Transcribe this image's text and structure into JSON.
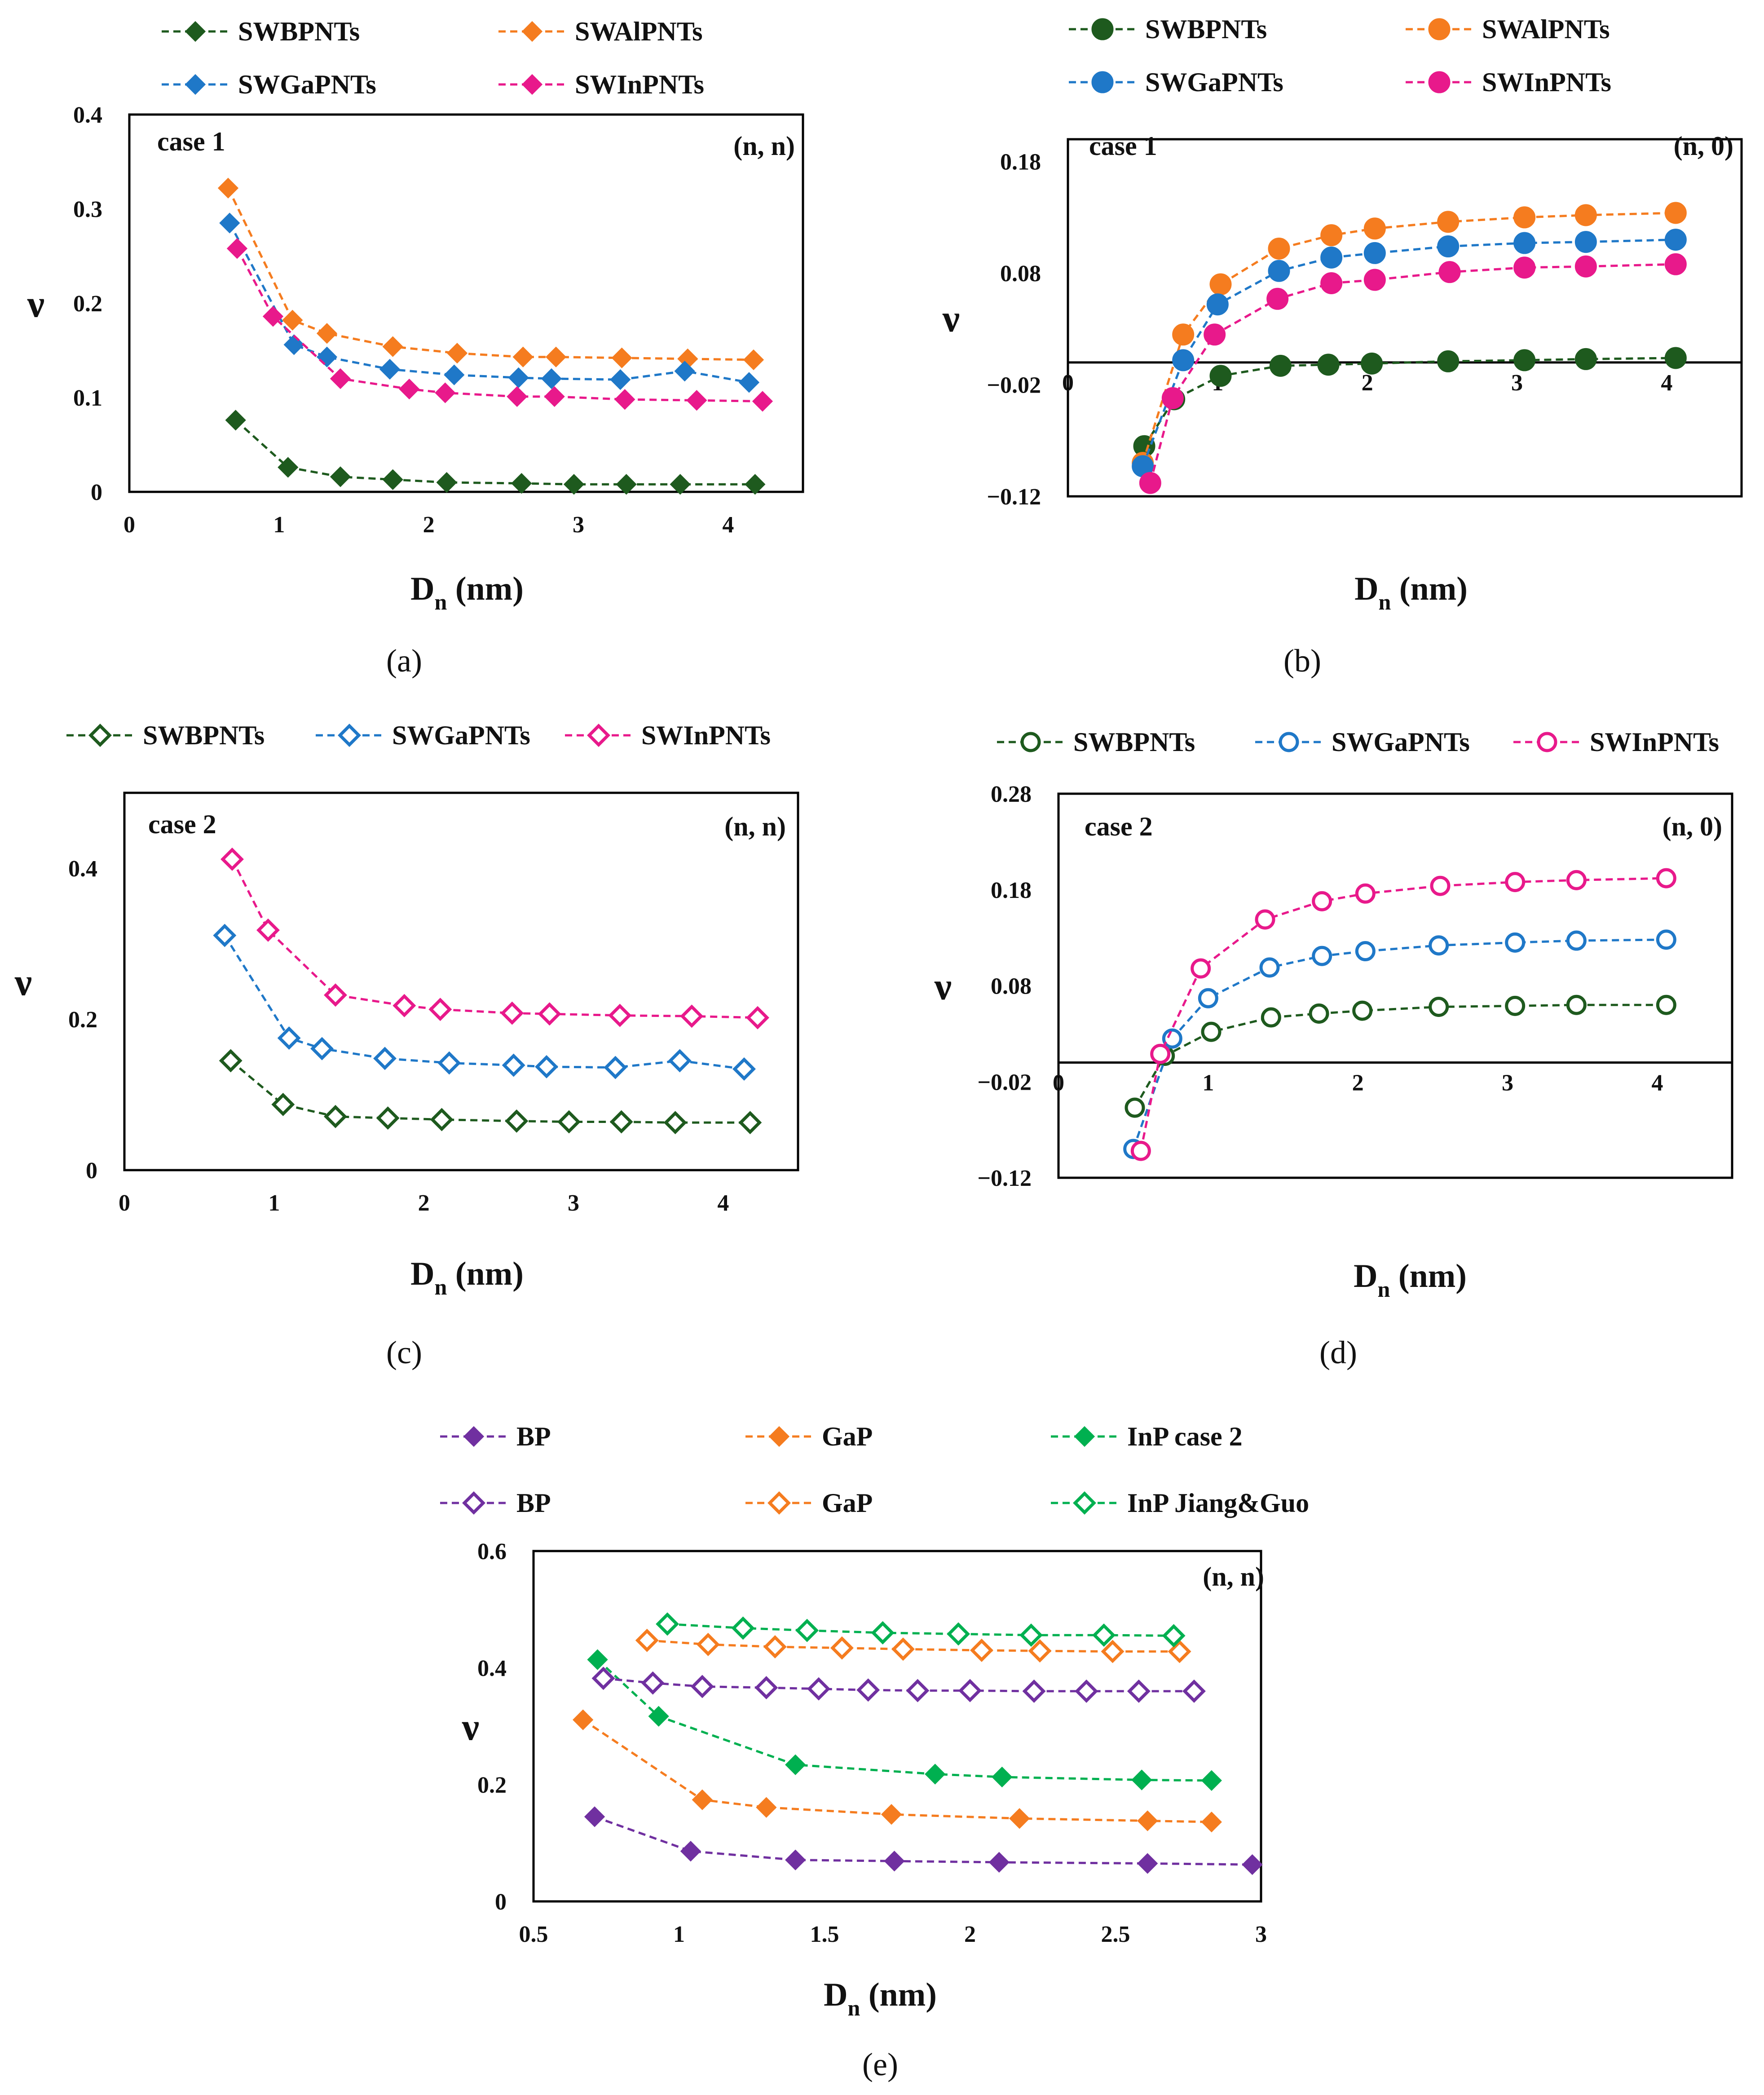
{
  "chart_data": [
    {
      "type": "line",
      "caption": "(a)",
      "case_label": "case 1",
      "chirality_label": "(n, n)",
      "ylabel": "ν",
      "xlabel": {
        "main": "D",
        "sub": "n",
        "unit": " (nm)"
      },
      "xlim": [
        0,
        4.5
      ],
      "ylim": [
        0,
        0.4
      ],
      "xticks": [
        0,
        1,
        2,
        3,
        4
      ],
      "xtick_labels": [
        "0",
        "1",
        "2",
        "3",
        "4"
      ],
      "yticks": [
        0,
        0.1,
        0.2,
        0.3,
        0.4
      ],
      "ytick_labels": [
        "0",
        "0.1",
        "0.2",
        "0.3",
        "0.4"
      ],
      "legend_columns": 2,
      "series": [
        {
          "name": "SWBPNTs",
          "color": "#1e5a1e",
          "marker": "diamond-filled",
          "x": [
            0.71,
            1.06,
            1.41,
            1.76,
            2.12,
            2.62,
            2.97,
            3.32,
            3.68,
            4.18
          ],
          "y": [
            0.076,
            0.026,
            0.016,
            0.013,
            0.01,
            0.009,
            0.008,
            0.008,
            0.008,
            0.008
          ]
        },
        {
          "name": "SWAlPNTs",
          "color": "#f57c1f",
          "marker": "diamond-filled",
          "x": [
            0.66,
            1.09,
            1.32,
            1.76,
            2.19,
            2.63,
            2.85,
            3.29,
            3.73,
            4.17
          ],
          "y": [
            0.322,
            0.182,
            0.168,
            0.154,
            0.147,
            0.143,
            0.143,
            0.142,
            0.141,
            0.14
          ]
        },
        {
          "name": "SWGaPNTs",
          "color": "#1f78c8",
          "marker": "diamond-filled",
          "x": [
            0.67,
            1.1,
            1.32,
            1.74,
            2.17,
            2.6,
            2.82,
            3.28,
            3.71,
            4.14
          ],
          "y": [
            0.285,
            0.156,
            0.143,
            0.13,
            0.124,
            0.121,
            0.12,
            0.119,
            0.128,
            0.116
          ]
        },
        {
          "name": "SWInPNTs",
          "color": "#e8198b",
          "marker": "diamond-filled",
          "x": [
            0.72,
            0.96,
            1.41,
            1.87,
            2.11,
            2.59,
            2.84,
            3.31,
            3.79,
            4.23
          ],
          "y": [
            0.258,
            0.186,
            0.12,
            0.109,
            0.105,
            0.101,
            0.101,
            0.098,
            0.097,
            0.096
          ]
        }
      ]
    },
    {
      "type": "line",
      "caption": "(b)",
      "case_label": "case 1",
      "chirality_label": "(n, 0)",
      "ylabel": "ν",
      "xlabel": {
        "main": "D",
        "sub": "n",
        "unit": " (nm)"
      },
      "xlim": [
        0,
        4.5
      ],
      "ylim": [
        -0.12,
        0.2
      ],
      "xticks": [
        0,
        1,
        2,
        3,
        4
      ],
      "xtick_labels": [
        "0",
        "1",
        "2",
        "3",
        "4"
      ],
      "yticks": [
        -0.12,
        -0.02,
        0.08,
        0.18
      ],
      "ytick_labels": [
        "−0.12",
        "−0.02",
        "0.08",
        "0.18"
      ],
      "zero_line": true,
      "legend_columns": 2,
      "series": [
        {
          "name": "SWBPNTs",
          "color": "#1e5a1e",
          "marker": "circle-filled",
          "x": [
            0.51,
            0.71,
            1.02,
            1.42,
            1.74,
            2.03,
            2.54,
            3.05,
            3.46,
            4.06
          ],
          "y": [
            -0.075,
            -0.033,
            -0.012,
            -0.003,
            -0.002,
            -0.001,
            0.001,
            0.002,
            0.003,
            0.004
          ]
        },
        {
          "name": "SWAlPNTs",
          "color": "#f57c1f",
          "marker": "circle-filled",
          "x": [
            0.5,
            0.77,
            1.02,
            1.41,
            1.76,
            2.05,
            2.54,
            3.05,
            3.46,
            4.06
          ],
          "y": [
            -0.09,
            0.025,
            0.07,
            0.102,
            0.114,
            0.12,
            0.126,
            0.13,
            0.132,
            0.134
          ]
        },
        {
          "name": "SWGaPNTs",
          "color": "#1f78c8",
          "marker": "circle-filled",
          "x": [
            0.5,
            0.77,
            1.0,
            1.41,
            1.76,
            2.05,
            2.54,
            3.05,
            3.46,
            4.06
          ],
          "y": [
            -0.093,
            0.002,
            0.052,
            0.082,
            0.094,
            0.098,
            0.104,
            0.107,
            0.108,
            0.11
          ]
        },
        {
          "name": "SWInPNTs",
          "color": "#e8198b",
          "marker": "circle-filled",
          "x": [
            0.55,
            0.7,
            0.98,
            1.4,
            1.76,
            2.05,
            2.55,
            3.05,
            3.46,
            4.06
          ],
          "y": [
            -0.108,
            -0.032,
            0.025,
            0.057,
            0.071,
            0.074,
            0.081,
            0.085,
            0.086,
            0.088
          ]
        }
      ]
    },
    {
      "type": "line",
      "caption": "(c)",
      "case_label": "case 2",
      "chirality_label": "(n, n)",
      "ylabel": "ν",
      "xlabel": {
        "main": "D",
        "sub": "n",
        "unit": " (nm)"
      },
      "xlim": [
        0,
        4.5
      ],
      "ylim": [
        0,
        0.5
      ],
      "xticks": [
        0,
        1,
        2,
        3,
        4
      ],
      "xtick_labels": [
        "0",
        "1",
        "2",
        "3",
        "4"
      ],
      "yticks": [
        0,
        0.2,
        0.4
      ],
      "ytick_labels": [
        "0",
        "0.2",
        "0.4"
      ],
      "legend_columns": 3,
      "series": [
        {
          "name": "SWBPNTs",
          "color": "#1e5a1e",
          "marker": "diamond-open",
          "x": [
            0.71,
            1.06,
            1.41,
            1.76,
            2.12,
            2.62,
            2.97,
            3.32,
            3.68,
            4.18
          ],
          "y": [
            0.145,
            0.087,
            0.071,
            0.069,
            0.067,
            0.065,
            0.064,
            0.064,
            0.063,
            0.063
          ]
        },
        {
          "name": "SWGaPNTs",
          "color": "#1f78c8",
          "marker": "diamond-open",
          "x": [
            0.67,
            1.1,
            1.32,
            1.74,
            2.17,
            2.6,
            2.82,
            3.28,
            3.71,
            4.14
          ],
          "y": [
            0.311,
            0.175,
            0.161,
            0.148,
            0.142,
            0.139,
            0.137,
            0.136,
            0.145,
            0.134
          ]
        },
        {
          "name": "SWInPNTs",
          "color": "#e8198b",
          "marker": "diamond-open",
          "x": [
            0.72,
            0.96,
            1.41,
            1.87,
            2.11,
            2.59,
            2.84,
            3.31,
            3.79,
            4.23
          ],
          "y": [
            0.412,
            0.318,
            0.232,
            0.218,
            0.213,
            0.208,
            0.207,
            0.205,
            0.204,
            0.202
          ]
        }
      ]
    },
    {
      "type": "line",
      "caption": "(d)",
      "case_label": "case 2",
      "chirality_label": "(n, 0)",
      "ylabel": "ν",
      "xlabel": {
        "main": "D",
        "sub": "n",
        "unit": " (nm)"
      },
      "xlim": [
        0,
        4.5
      ],
      "ylim": [
        -0.12,
        0.28
      ],
      "xticks": [
        0,
        1,
        2,
        3,
        4
      ],
      "xtick_labels": [
        "0",
        "1",
        "2",
        "3",
        "4"
      ],
      "yticks": [
        -0.12,
        -0.02,
        0.08,
        0.18,
        0.28
      ],
      "ytick_labels": [
        "−0.12",
        "−0.02",
        "0.08",
        "0.18",
        "0.28"
      ],
      "zero_line": true,
      "legend_columns": 3,
      "series": [
        {
          "name": "SWBPNTs",
          "color": "#1e5a1e",
          "marker": "circle-open",
          "x": [
            0.51,
            0.71,
            1.02,
            1.42,
            1.74,
            2.03,
            2.54,
            3.05,
            3.46,
            4.06
          ],
          "y": [
            -0.047,
            0.007,
            0.032,
            0.047,
            0.051,
            0.054,
            0.058,
            0.059,
            0.06,
            0.06
          ]
        },
        {
          "name": "SWGaPNTs",
          "color": "#1f78c8",
          "marker": "circle-open",
          "x": [
            0.5,
            0.76,
            1.0,
            1.41,
            1.76,
            2.05,
            2.54,
            3.05,
            3.46,
            4.06
          ],
          "y": [
            -0.09,
            0.025,
            0.067,
            0.099,
            0.111,
            0.116,
            0.122,
            0.125,
            0.127,
            0.128
          ]
        },
        {
          "name": "SWInPNTs",
          "color": "#e8198b",
          "marker": "circle-open",
          "x": [
            0.55,
            0.68,
            0.95,
            1.38,
            1.76,
            2.05,
            2.55,
            3.05,
            3.46,
            4.06
          ],
          "y": [
            -0.092,
            0.009,
            0.098,
            0.149,
            0.168,
            0.176,
            0.184,
            0.188,
            0.19,
            0.192
          ]
        }
      ]
    },
    {
      "type": "line",
      "caption": "(e)",
      "chirality_label": "(n, n)",
      "ylabel": "ν",
      "xlabel": {
        "main": "D",
        "sub": "n",
        "unit": " (nm)"
      },
      "xlim": [
        0.5,
        3.0
      ],
      "ylim": [
        0,
        0.6
      ],
      "xticks": [
        0.5,
        1,
        1.5,
        2,
        2.5,
        3
      ],
      "xtick_labels": [
        "0.5",
        "1",
        "1.5",
        "2",
        "2.5",
        "3"
      ],
      "yticks": [
        0,
        0.2,
        0.4,
        0.6
      ],
      "ytick_labels": [
        "0",
        "0.2",
        "0.4",
        "0.6"
      ],
      "legend_columns": 3,
      "series": [
        {
          "name": "BP",
          "color": "#7030a0",
          "marker": "diamond-filled",
          "x": [
            0.71,
            1.04,
            1.4,
            1.74,
            2.1,
            2.61,
            2.97
          ],
          "y": [
            0.145,
            0.086,
            0.071,
            0.069,
            0.067,
            0.065,
            0.063
          ]
        },
        {
          "name": "GaP",
          "color": "#f57c1f",
          "marker": "diamond-filled",
          "x": [
            0.67,
            1.08,
            1.3,
            1.73,
            2.17,
            2.61,
            2.83
          ],
          "y": [
            0.311,
            0.174,
            0.161,
            0.149,
            0.142,
            0.138,
            0.136
          ]
        },
        {
          "name": "InP case 2",
          "color": "#00b050",
          "marker": "diamond-filled",
          "x": [
            0.72,
            0.93,
            1.4,
            1.88,
            2.11,
            2.59,
            2.83
          ],
          "y": [
            0.414,
            0.317,
            0.234,
            0.218,
            0.213,
            0.208,
            0.207
          ]
        },
        {
          "name": "BP",
          "color": "#7030a0",
          "marker": "diamond-open",
          "x": [
            0.74,
            0.91,
            1.08,
            1.3,
            1.48,
            1.65,
            1.82,
            2.0,
            2.22,
            2.4,
            2.58,
            2.77
          ],
          "y": [
            0.382,
            0.374,
            0.368,
            0.366,
            0.364,
            0.362,
            0.361,
            0.361,
            0.36,
            0.36,
            0.36,
            0.36
          ]
        },
        {
          "name": "GaP",
          "color": "#f57c1f",
          "marker": "diamond-open",
          "x": [
            0.89,
            1.1,
            1.33,
            1.56,
            1.77,
            2.04,
            2.24,
            2.49,
            2.72
          ],
          "y": [
            0.447,
            0.44,
            0.436,
            0.434,
            0.432,
            0.43,
            0.429,
            0.428,
            0.428
          ]
        },
        {
          "name": "InP Jiang&Guo",
          "color": "#00b050",
          "marker": "diamond-open",
          "x": [
            0.96,
            1.22,
            1.44,
            1.7,
            1.96,
            2.21,
            2.46,
            2.7
          ],
          "y": [
            0.475,
            0.468,
            0.464,
            0.46,
            0.458,
            0.456,
            0.456,
            0.455
          ]
        }
      ]
    }
  ]
}
